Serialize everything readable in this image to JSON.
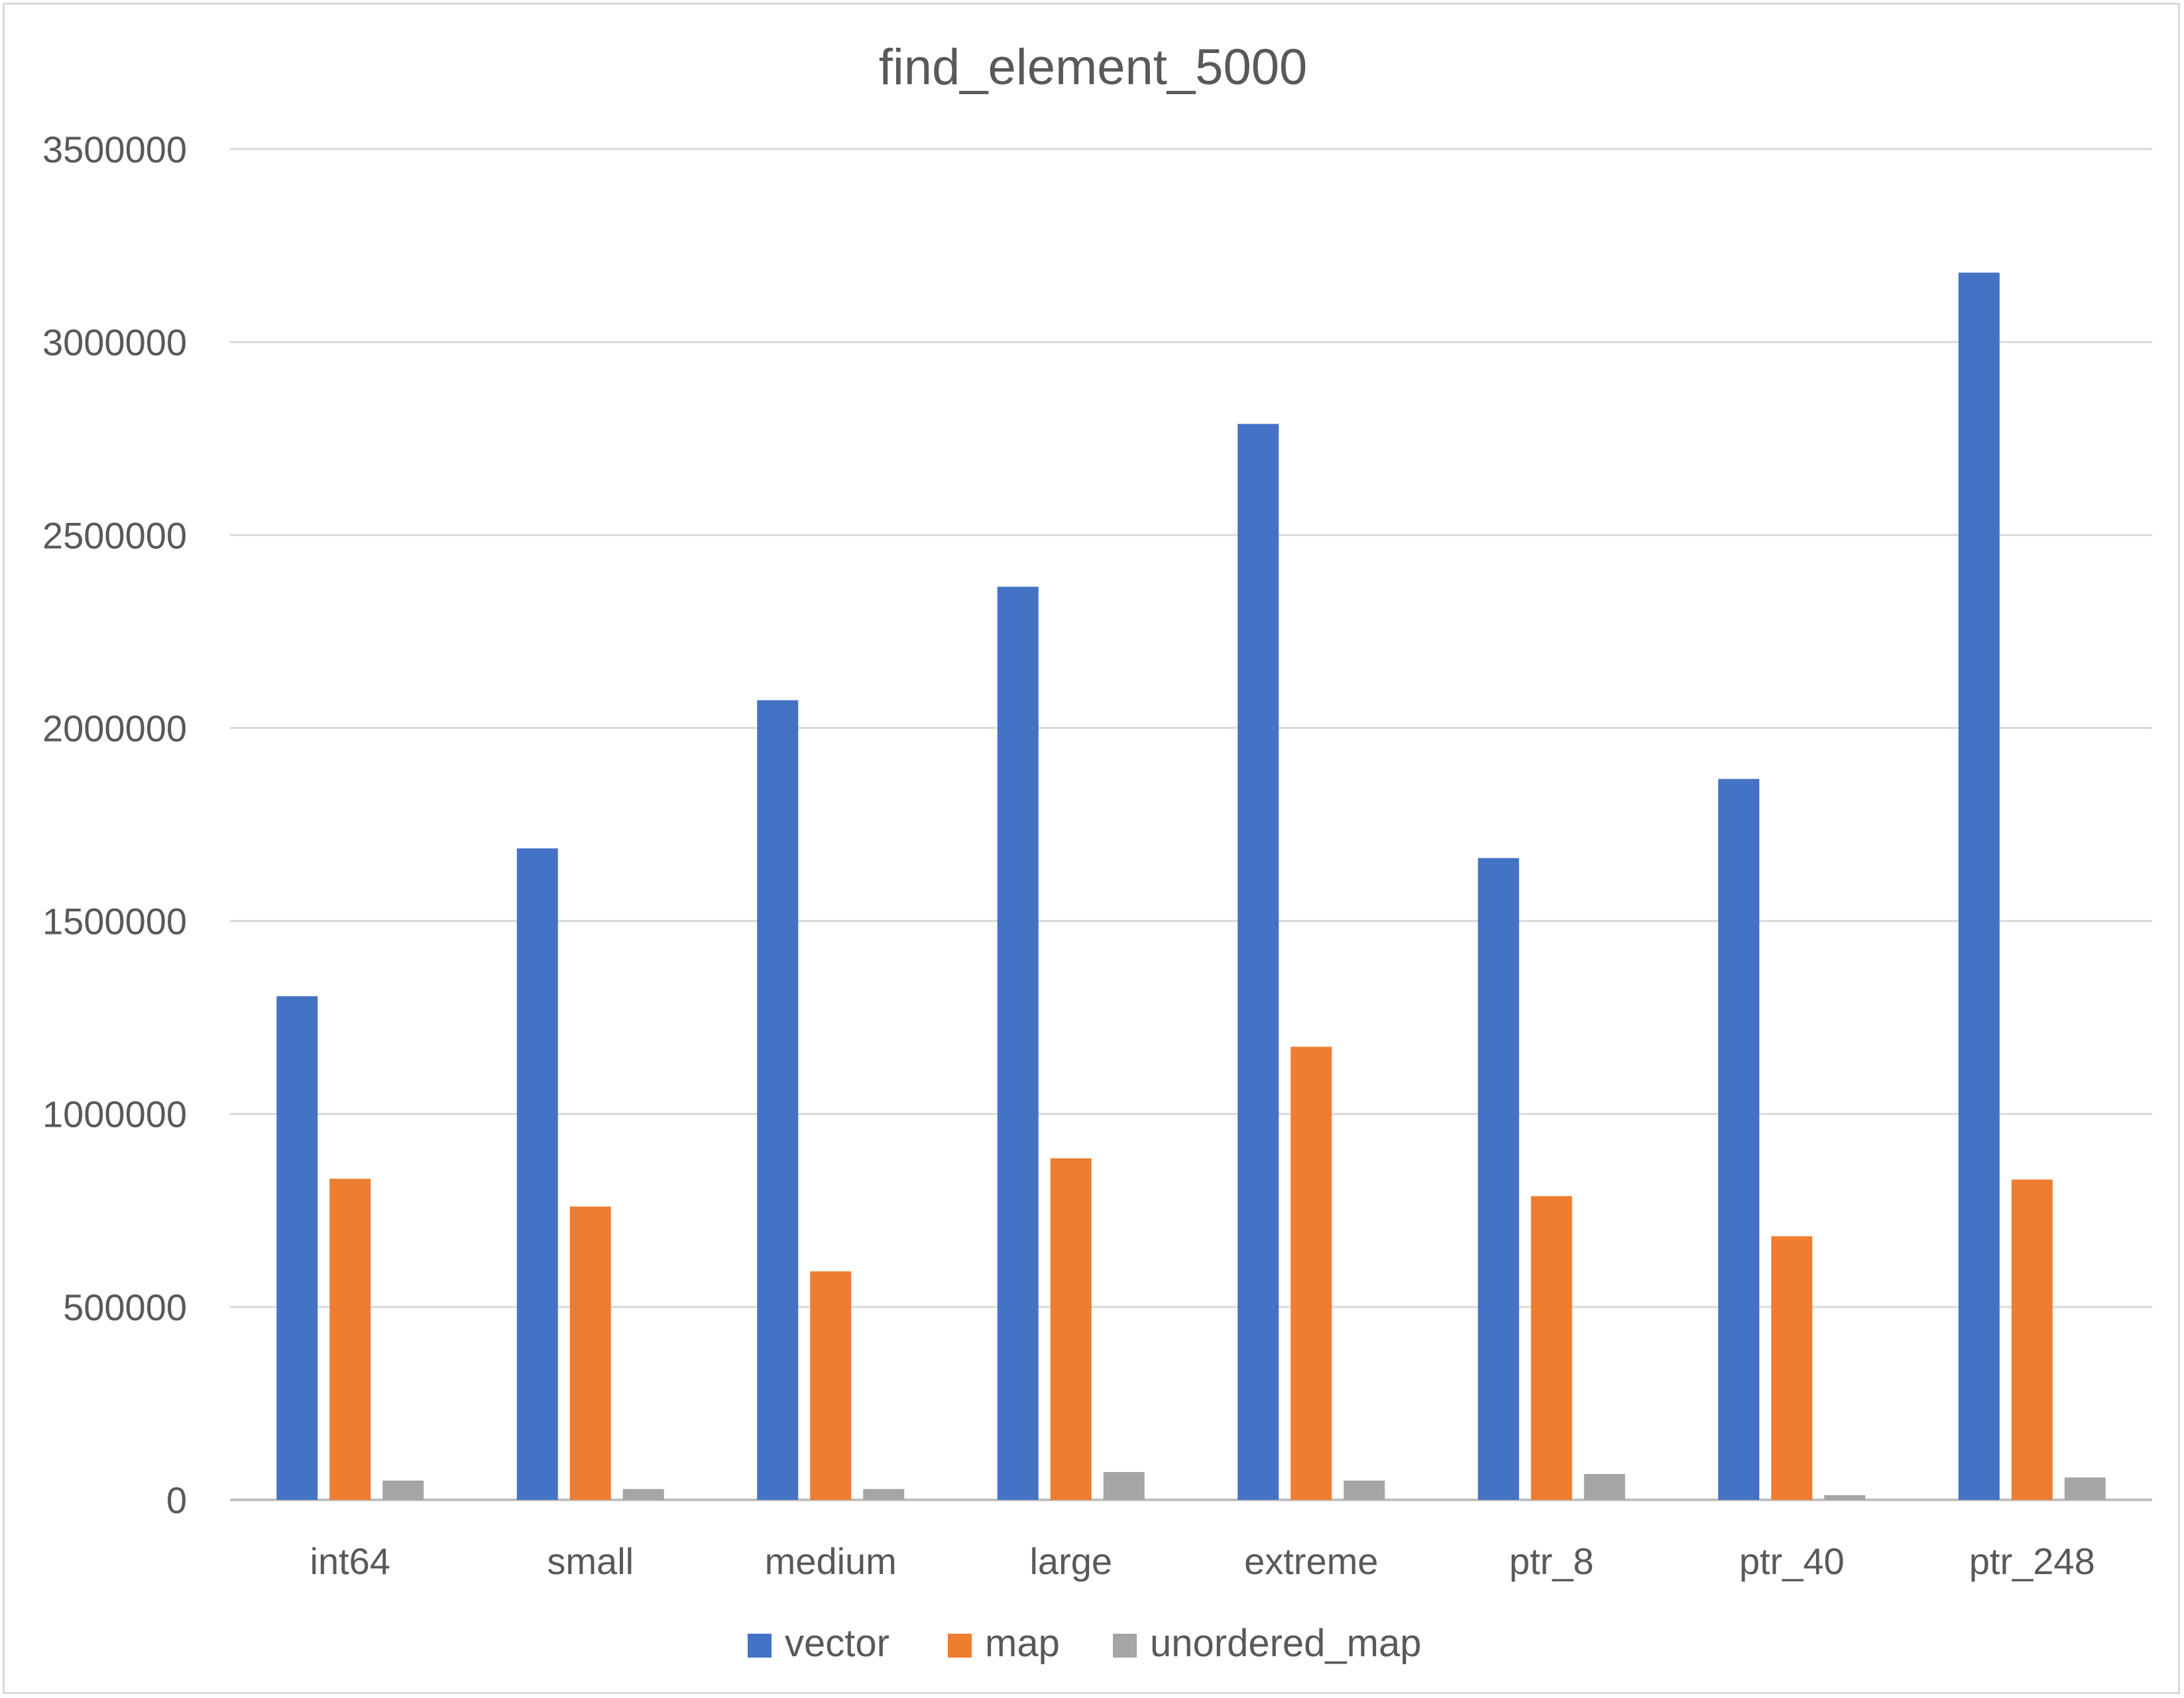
{
  "chart_data": {
    "type": "bar",
    "title": "find_element_5000",
    "xlabel": "",
    "ylabel": "",
    "ylim": [
      0,
      3500000
    ],
    "yticks": [
      "0",
      "500000",
      "1000000",
      "1500000",
      "2000000",
      "2500000",
      "3000000",
      "3500000"
    ],
    "grid": true,
    "legend_position": "bottom",
    "categories": [
      "int64",
      "small",
      "medium",
      "large",
      "extreme",
      "ptr_8",
      "ptr_40",
      "ptr_248"
    ],
    "series": [
      {
        "name": "vector",
        "color": "#4472c4",
        "values": [
          1305000,
          1688000,
          2072000,
          2366000,
          2788000,
          1663000,
          1868000,
          3180000
        ]
      },
      {
        "name": "map",
        "color": "#ed7d31",
        "values": [
          832000,
          760000,
          592000,
          885000,
          1174000,
          787000,
          683000,
          830000
        ]
      },
      {
        "name": "unordered_map",
        "color": "#a5a5a5",
        "values": [
          50000,
          28000,
          28000,
          72000,
          50000,
          67000,
          12000,
          58000
        ]
      }
    ]
  }
}
